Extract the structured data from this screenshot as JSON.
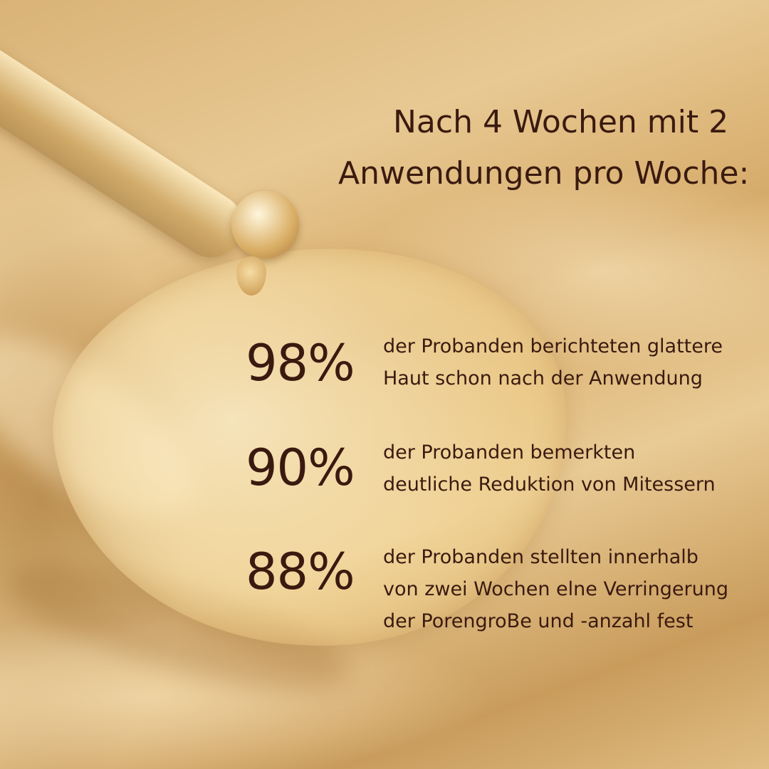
{
  "headline": {
    "line1": "Nach 4 Wochen mit 2",
    "line2": "Anwendungen pro Woche:"
  },
  "stats": [
    {
      "value": "98%",
      "lines": [
        "der Probanden berichteten glattere",
        "Haut schon nach der Anwendung"
      ]
    },
    {
      "value": "90%",
      "lines": [
        "der Probanden bemerkten",
        "deutliche Reduktion von Mitessern"
      ]
    },
    {
      "value": "88%",
      "lines": [
        "der Probanden stellten innerhalb",
        "von zwei Wochen elne Verringerung",
        "der PorengroBe und -anzahl fest"
      ]
    }
  ],
  "colors": {
    "text": "#3a1a0f",
    "background": "#dcb57a"
  }
}
